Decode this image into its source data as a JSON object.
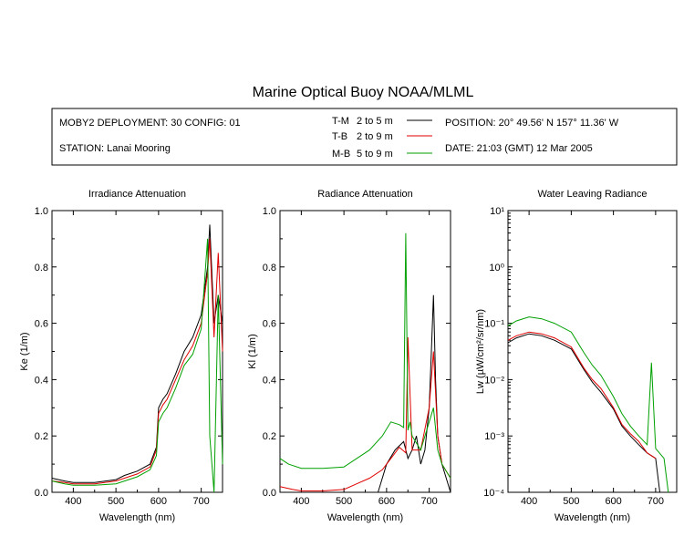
{
  "title": "Marine Optical Buoy NOAA/MLML",
  "info": {
    "deployment": "MOBY2 DEPLOYMENT: 30 CONFIG: 01",
    "station": "STATION: Lanai Mooring",
    "position": "POSITION: 20° 49.56' N  157° 11.36' W",
    "date": "DATE: 21:03 (GMT) 12 Mar 2005"
  },
  "legend": [
    {
      "code": "T-M",
      "range": "2 to 5  m",
      "color": "#000000"
    },
    {
      "code": "T-B",
      "range": "2 to 9  m",
      "color": "#e00000"
    },
    {
      "code": "M-B",
      "range": "5 to 9  m",
      "color": "#00a000"
    }
  ],
  "chart_data": [
    {
      "type": "line",
      "title": "Irradiance Attenuation",
      "xlabel": "Wavelength (nm)",
      "ylabel": "Ke  (1/m)",
      "xlim": [
        350,
        750
      ],
      "ylim": [
        0,
        1.0
      ],
      "xticks": [
        "400",
        "500",
        "600",
        "700"
      ],
      "yticks": [
        "0.0",
        "0.2",
        "0.4",
        "0.6",
        "0.8",
        "1.0"
      ],
      "series": [
        {
          "name": "T-M",
          "color": "#000000",
          "x": [
            350,
            380,
            400,
            450,
            500,
            520,
            550,
            580,
            595,
            600,
            610,
            620,
            640,
            660,
            680,
            700,
            715,
            720,
            730,
            740,
            750
          ],
          "y": [
            0.05,
            0.04,
            0.035,
            0.035,
            0.045,
            0.06,
            0.075,
            0.1,
            0.16,
            0.3,
            0.33,
            0.35,
            0.42,
            0.5,
            0.55,
            0.63,
            0.8,
            0.95,
            0.6,
            0.7,
            0.6
          ]
        },
        {
          "name": "T-B",
          "color": "#e00000",
          "x": [
            350,
            380,
            400,
            450,
            500,
            520,
            550,
            580,
            595,
            600,
            610,
            620,
            640,
            660,
            680,
            700,
            715,
            720,
            730,
            740,
            750
          ],
          "y": [
            0.04,
            0.035,
            0.03,
            0.03,
            0.04,
            0.05,
            0.065,
            0.09,
            0.15,
            0.28,
            0.31,
            0.33,
            0.4,
            0.47,
            0.52,
            0.6,
            0.78,
            0.9,
            0.55,
            0.85,
            0.5
          ]
        },
        {
          "name": "M-B",
          "color": "#00a000",
          "x": [
            350,
            380,
            400,
            450,
            500,
            520,
            550,
            580,
            595,
            600,
            610,
            620,
            640,
            660,
            680,
            700,
            715,
            720,
            730,
            740,
            750
          ],
          "y": [
            0.04,
            0.03,
            0.025,
            0.025,
            0.03,
            0.04,
            0.055,
            0.08,
            0.13,
            0.25,
            0.28,
            0.3,
            0.37,
            0.45,
            0.49,
            0.58,
            0.9,
            0.2,
            0.0,
            0.7,
            0.1
          ]
        }
      ]
    },
    {
      "type": "line",
      "title": "Radiance Attenuation",
      "xlabel": "Wavelength (nm)",
      "ylabel": "Kl  (1/m)",
      "xlim": [
        350,
        750
      ],
      "ylim": [
        0,
        1.0
      ],
      "xticks": [
        "400",
        "500",
        "600",
        "700"
      ],
      "yticks": [
        "0.0",
        "0.2",
        "0.4",
        "0.6",
        "0.8",
        "1.0"
      ],
      "series": [
        {
          "name": "T-M",
          "color": "#000000",
          "x": [
            580,
            600,
            620,
            640,
            650,
            660,
            670,
            680,
            690,
            700,
            705,
            710,
            715,
            720,
            730,
            740,
            750
          ],
          "y": [
            0.0,
            0.1,
            0.15,
            0.18,
            0.12,
            0.15,
            0.2,
            0.1,
            0.15,
            0.3,
            0.5,
            0.7,
            0.4,
            0.2,
            0.1,
            0.05,
            0.0
          ]
        },
        {
          "name": "T-B",
          "color": "#e00000",
          "x": [
            350,
            380,
            400,
            450,
            500,
            530,
            560,
            590,
            610,
            630,
            645,
            650,
            660,
            680,
            700,
            710,
            720,
            730,
            750
          ],
          "y": [
            0.02,
            0.01,
            0.005,
            0.005,
            0.01,
            0.03,
            0.05,
            0.08,
            0.12,
            0.16,
            0.14,
            0.55,
            0.15,
            0.15,
            0.3,
            0.5,
            0.2,
            0.1,
            0.05
          ]
        },
        {
          "name": "M-B",
          "color": "#00a000",
          "x": [
            350,
            370,
            400,
            450,
            500,
            530,
            560,
            590,
            610,
            630,
            640,
            645,
            650,
            655,
            660,
            680,
            700,
            710,
            720,
            730,
            750
          ],
          "y": [
            0.12,
            0.1,
            0.085,
            0.085,
            0.09,
            0.12,
            0.15,
            0.2,
            0.25,
            0.24,
            0.23,
            0.92,
            0.22,
            0.25,
            0.2,
            0.15,
            0.25,
            0.3,
            0.15,
            0.1,
            0.05
          ]
        }
      ]
    },
    {
      "type": "line",
      "title": "Water Leaving Radiance",
      "xlabel": "Wavelength (nm)",
      "ylabel": "Lw  (µW/cm²/sr/nm)",
      "xlim": [
        350,
        750
      ],
      "ylim": [
        0.0001,
        10
      ],
      "yscale": "log",
      "xticks": [
        "400",
        "500",
        "600",
        "700"
      ],
      "yticks": [
        "10¹",
        "10⁰",
        "10⁻¹",
        "10⁻²",
        "10⁻³",
        "10⁻⁴"
      ],
      "series": [
        {
          "name": "T-M",
          "color": "#000000",
          "x": [
            350,
            370,
            400,
            430,
            460,
            500,
            530,
            550,
            570,
            600,
            620,
            640,
            660,
            680,
            700,
            710
          ],
          "y": [
            0.045,
            0.055,
            0.065,
            0.06,
            0.05,
            0.035,
            0.015,
            0.009,
            0.006,
            0.003,
            0.0015,
            0.001,
            0.0007,
            0.0005,
            0.0004,
            0.0001
          ]
        },
        {
          "name": "T-B",
          "color": "#e00000",
          "x": [
            350,
            370,
            400,
            430,
            460,
            500,
            530,
            550,
            570,
            600,
            620,
            640,
            660,
            680,
            700
          ],
          "y": [
            0.05,
            0.06,
            0.07,
            0.065,
            0.055,
            0.038,
            0.016,
            0.01,
            0.007,
            0.0032,
            0.0016,
            0.0011,
            0.0008,
            0.0005,
            0.0004
          ]
        },
        {
          "name": "M-B",
          "color": "#00a000",
          "x": [
            350,
            370,
            400,
            430,
            460,
            500,
            530,
            550,
            570,
            600,
            620,
            640,
            660,
            680,
            690,
            700,
            720,
            730
          ],
          "y": [
            0.09,
            0.11,
            0.13,
            0.12,
            0.1,
            0.07,
            0.03,
            0.018,
            0.012,
            0.005,
            0.0025,
            0.0015,
            0.001,
            0.0007,
            0.02,
            0.0006,
            0.0004,
            0.0001
          ]
        }
      ]
    }
  ]
}
